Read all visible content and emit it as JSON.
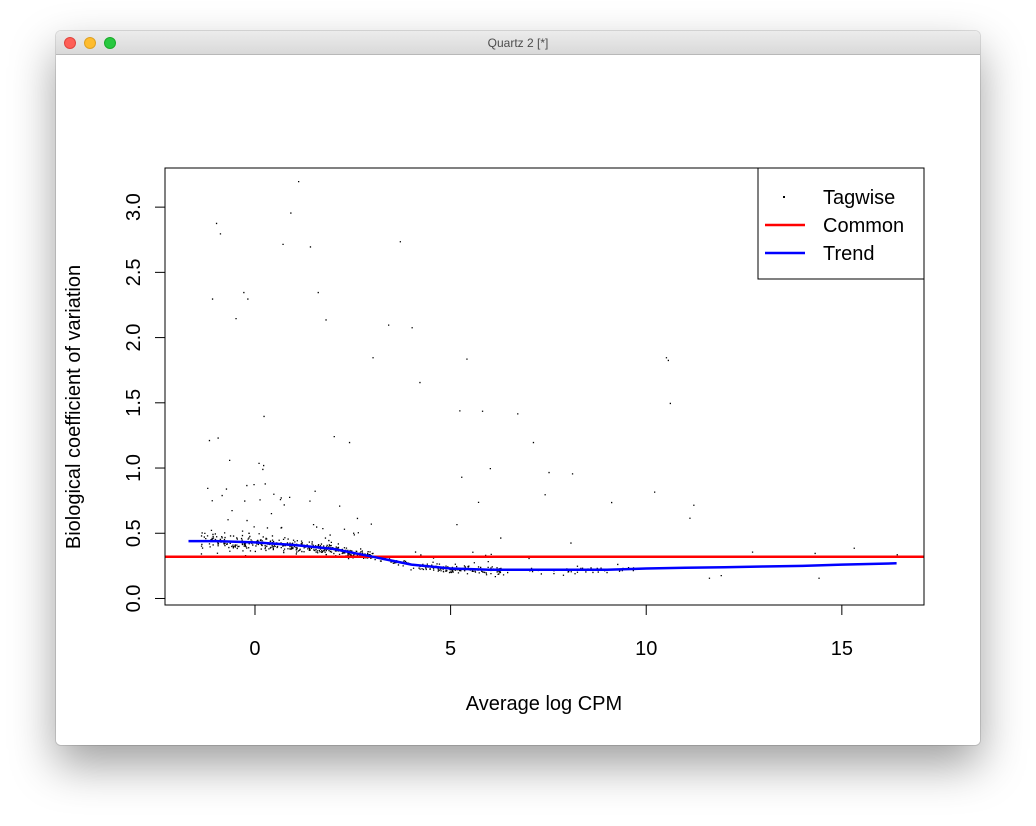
{
  "window": {
    "title": "Quartz 2 [*]"
  },
  "colors": {
    "tagwise": "#000000",
    "common": "#ff0000",
    "trend": "#0000ff"
  },
  "chart_data": {
    "type": "scatter",
    "title": "",
    "xlabel": "Average log CPM",
    "ylabel": "Biological coefficient of variation",
    "xlim": [
      -2.3,
      17.1
    ],
    "ylim": [
      -0.05,
      3.3
    ],
    "x_ticks": [
      0,
      5,
      10,
      15
    ],
    "y_ticks": [
      0.0,
      0.5,
      1.0,
      1.5,
      2.0,
      2.5,
      3.0
    ],
    "x_tick_labels": [
      "0",
      "5",
      "10",
      "15"
    ],
    "y_tick_labels": [
      "0.0",
      "0.5",
      "1.0",
      "1.5",
      "2.0",
      "2.5",
      "3.0"
    ],
    "grid": false,
    "legend": {
      "position": "top-right",
      "entries": [
        "Tagwise",
        "Common",
        "Trend"
      ]
    },
    "series": [
      {
        "name": "Tagwise",
        "kind": "points",
        "note_outliers": [
          [
            1.1,
            3.2
          ],
          [
            -1.0,
            2.88
          ],
          [
            -0.9,
            2.8
          ],
          [
            0.9,
            2.96
          ],
          [
            0.7,
            2.72
          ],
          [
            1.4,
            2.7
          ],
          [
            3.7,
            2.74
          ],
          [
            -0.3,
            2.35
          ],
          [
            -0.2,
            2.3
          ],
          [
            1.6,
            2.35
          ],
          [
            -0.5,
            2.15
          ],
          [
            3.4,
            2.1
          ],
          [
            4.0,
            2.08
          ],
          [
            -1.1,
            2.3
          ],
          [
            1.8,
            2.14
          ],
          [
            5.4,
            1.84
          ],
          [
            10.5,
            1.85
          ],
          [
            10.55,
            1.83
          ],
          [
            10.6,
            1.5
          ],
          [
            5.8,
            1.44
          ],
          [
            6.7,
            1.42
          ],
          [
            11.2,
            0.72
          ],
          [
            11.1,
            0.62
          ],
          [
            9.1,
            0.74
          ],
          [
            10.2,
            0.82
          ],
          [
            12.7,
            0.36
          ],
          [
            14.3,
            0.35
          ],
          [
            15.3,
            0.39
          ],
          [
            16.4,
            0.34
          ],
          [
            14.4,
            0.16
          ],
          [
            11.9,
            0.18
          ],
          [
            11.6,
            0.16
          ],
          [
            4.2,
            1.66
          ],
          [
            3.0,
            1.85
          ],
          [
            2.4,
            1.2
          ],
          [
            7.1,
            1.2
          ],
          [
            7.5,
            0.97
          ],
          [
            8.1,
            0.96
          ],
          [
            7.4,
            0.8
          ],
          [
            6.0,
            1.0
          ]
        ]
      },
      {
        "name": "Common",
        "kind": "hline",
        "y": 0.32
      },
      {
        "name": "Trend",
        "kind": "line",
        "x": [
          -1.7,
          -1.0,
          0.0,
          1.0,
          2.0,
          3.0,
          4.0,
          5.0,
          6.0,
          7.0,
          8.0,
          9.0,
          10.0,
          11.0,
          12.0,
          13.0,
          14.0,
          15.0,
          16.4
        ],
        "y": [
          0.44,
          0.44,
          0.43,
          0.41,
          0.38,
          0.32,
          0.26,
          0.23,
          0.22,
          0.22,
          0.22,
          0.22,
          0.23,
          0.235,
          0.24,
          0.245,
          0.25,
          0.26,
          0.27
        ]
      }
    ]
  }
}
